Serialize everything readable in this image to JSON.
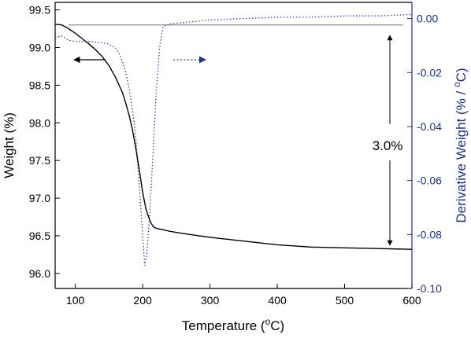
{
  "chart_data": {
    "type": "line",
    "title": "",
    "xlabel_main": "Temperature (",
    "xlabel_sup": "o",
    "xlabel_tail": "C)",
    "ylabel_left": "Weight (%)",
    "ylabel_right_main": "Derivative Weight (% / ",
    "ylabel_right_sup": "o",
    "ylabel_right_tail": "C)",
    "xlim": [
      70,
      600
    ],
    "ylim_left": [
      95.8,
      99.6
    ],
    "ylim_right": [
      -0.1,
      0.006
    ],
    "x_ticks": [
      100,
      200,
      300,
      400,
      500,
      600
    ],
    "x_tick_labels": [
      "100",
      "200",
      "300",
      "400",
      "500",
      "600"
    ],
    "y_left_ticks": [
      96.0,
      96.5,
      97.0,
      97.5,
      98.0,
      98.5,
      99.0,
      99.5
    ],
    "y_left_tick_labels": [
      "96.0",
      "96.5",
      "97.0",
      "97.5",
      "98.0",
      "98.5",
      "99.0",
      "99.5"
    ],
    "y_right_ticks": [
      0.0,
      -0.02,
      -0.04,
      -0.06,
      -0.08,
      -0.1
    ],
    "y_right_tick_labels": [
      "0.00",
      "-0.02",
      "-0.04",
      "-0.06",
      "-0.08",
      "-0.10"
    ],
    "colors": {
      "weight": "#000000",
      "derivative": "#1f2f8f",
      "reference": "#8c8c8c"
    },
    "series": [
      {
        "axis": "left",
        "style": "solid",
        "x": [
          70,
          80,
          90,
          100,
          110,
          120,
          130,
          140,
          150,
          160,
          170,
          175,
          180,
          185,
          190,
          195,
          200,
          205,
          210,
          213,
          216,
          220,
          225,
          230,
          240,
          260,
          300,
          350,
          400,
          450,
          500,
          550,
          600
        ],
        "y": [
          99.31,
          99.3,
          99.25,
          99.19,
          99.12,
          99.05,
          98.97,
          98.88,
          98.76,
          98.6,
          98.4,
          98.26,
          98.1,
          97.9,
          97.65,
          97.38,
          97.08,
          96.85,
          96.72,
          96.66,
          96.62,
          96.6,
          96.59,
          96.58,
          96.56,
          96.53,
          96.48,
          96.43,
          96.38,
          96.35,
          96.34,
          96.33,
          96.32
        ]
      },
      {
        "axis": "right",
        "style": "dotted",
        "x": [
          70,
          80,
          90,
          100,
          120,
          140,
          150,
          160,
          165,
          170,
          175,
          180,
          185,
          190,
          195,
          200,
          203,
          206,
          210,
          215,
          220,
          225,
          230,
          240,
          260,
          300,
          350,
          400,
          450,
          500,
          550,
          600
        ],
        "y": [
          -0.007,
          -0.0065,
          -0.008,
          -0.0085,
          -0.0085,
          -0.009,
          -0.0095,
          -0.011,
          -0.013,
          -0.016,
          -0.02,
          -0.026,
          -0.034,
          -0.045,
          -0.062,
          -0.08,
          -0.0915,
          -0.088,
          -0.074,
          -0.052,
          -0.028,
          -0.011,
          -0.003,
          -0.002,
          -0.0015,
          -0.0005,
          0.0,
          0.0005,
          0.0005,
          0.001,
          0.001,
          0.0015
        ]
      }
    ],
    "reference_line": {
      "axis": "left",
      "y": 99.3,
      "x": [
        90,
        587
      ]
    },
    "annotations": [
      {
        "text": "3.0%",
        "x": 565,
        "y_left": 97.7
      }
    ]
  }
}
